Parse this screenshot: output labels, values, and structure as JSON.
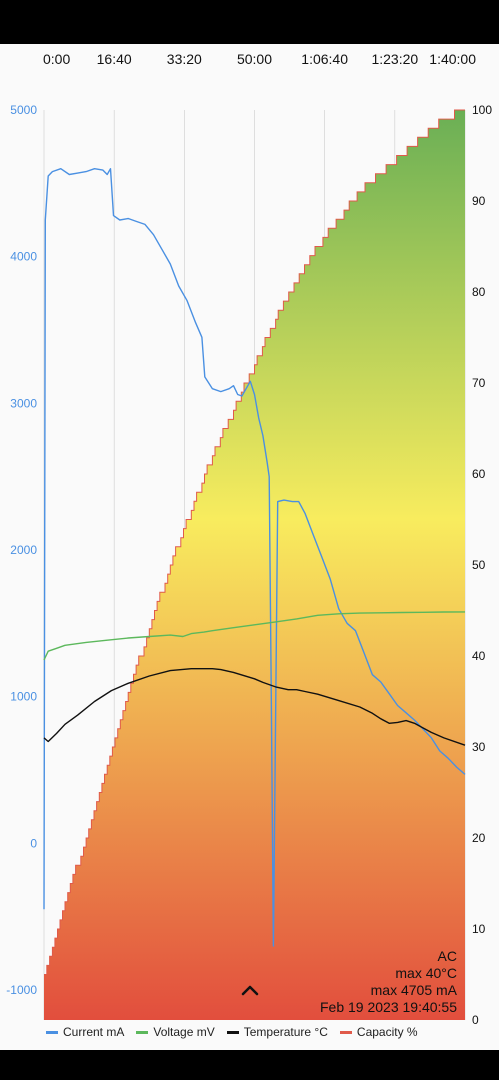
{
  "chart_data": {
    "type": "line",
    "x_ticks": [
      "0:00",
      "16:40",
      "33:20",
      "50:00",
      "1:06:40",
      "1:23:20",
      "1:40:00"
    ],
    "x_range_minutes": [
      0,
      100
    ],
    "y_left_ticks": [
      "5000",
      "4000",
      "3000",
      "2000",
      "1000",
      "0",
      "-1000"
    ],
    "y_left_range": [
      -1000,
      5000
    ],
    "y_right_ticks": [
      "100",
      "90",
      "80",
      "70",
      "60",
      "50",
      "40",
      "30",
      "20",
      "10",
      "0"
    ],
    "y_right_range": [
      0,
      100
    ],
    "grid": "vertical lines",
    "legend_position": "bottom",
    "series": [
      {
        "name": "Current mA",
        "color": "#4a90e2",
        "axis": "left",
        "x": [
          0,
          0.3,
          1,
          2,
          4,
          6,
          8,
          10,
          12,
          14,
          15,
          15.8,
          16.5,
          18,
          20,
          22,
          24,
          26,
          28,
          30,
          32,
          34,
          36,
          37.5,
          38.2,
          40,
          42,
          44,
          45,
          46,
          47,
          48,
          49,
          50,
          51,
          52,
          53,
          53.5,
          54,
          54.5,
          55.5,
          57,
          59,
          60,
          60.5,
          62,
          64,
          66,
          68,
          70,
          72,
          74,
          76,
          78,
          80,
          82,
          84,
          86,
          88,
          90,
          92,
          94,
          96,
          98,
          100
        ],
        "y": [
          -450,
          4250,
          4550,
          4580,
          4600,
          4560,
          4570,
          4580,
          4600,
          4590,
          4560,
          4600,
          4280,
          4250,
          4260,
          4240,
          4220,
          4150,
          4050,
          3950,
          3800,
          3700,
          3550,
          3450,
          3180,
          3100,
          3080,
          3100,
          3120,
          3060,
          3050,
          3100,
          3150,
          3060,
          2900,
          2780,
          2600,
          2500,
          1000,
          -700,
          2330,
          2340,
          2330,
          2330,
          2330,
          2250,
          2100,
          1950,
          1800,
          1600,
          1500,
          1450,
          1300,
          1150,
          1100,
          1020,
          940,
          890,
          840,
          780,
          720,
          630,
          580,
          520,
          470
        ]
      },
      {
        "name": "Voltage mV",
        "color": "#5cb85c",
        "axis": "left",
        "x": [
          0,
          1,
          3,
          5,
          10,
          15,
          20,
          25,
          30,
          33,
          35,
          38,
          40,
          45,
          50,
          55,
          60,
          65,
          70,
          75,
          80,
          85,
          90,
          95,
          100
        ],
        "y": [
          1250,
          1310,
          1330,
          1350,
          1370,
          1385,
          1400,
          1410,
          1420,
          1410,
          1430,
          1440,
          1450,
          1470,
          1490,
          1510,
          1530,
          1555,
          1565,
          1570,
          1572,
          1574,
          1575,
          1577,
          1578
        ]
      },
      {
        "name": "Temperature °C",
        "color": "#111111",
        "axis": "right",
        "x": [
          0,
          1,
          3,
          5,
          8,
          12,
          16,
          20,
          25,
          30,
          35,
          38,
          40,
          42,
          45,
          50,
          52,
          55,
          58,
          60,
          62,
          65,
          70,
          75,
          78,
          80,
          82,
          84,
          86,
          88,
          90,
          92,
          95,
          100
        ],
        "y": [
          31,
          30.6,
          31.5,
          32.5,
          33.5,
          35,
          36.2,
          37,
          37.8,
          38.4,
          38.6,
          38.6,
          38.6,
          38.5,
          38.2,
          37.5,
          37.1,
          36.6,
          36.3,
          36.3,
          36.1,
          35.8,
          35.1,
          34.4,
          33.7,
          33.1,
          32.6,
          32.7,
          32.9,
          32.6,
          32.1,
          31.6,
          31.0,
          30.2
        ]
      },
      {
        "name": "Capacity %",
        "color": "#e05a4a",
        "axis": "right",
        "step": true,
        "x": [
          0,
          2,
          5,
          10,
          15,
          20,
          25,
          30,
          35,
          40,
          45,
          50,
          55,
          60,
          65,
          70,
          75,
          80,
          85,
          90,
          95,
          100
        ],
        "y": [
          5,
          8,
          13,
          20,
          28,
          36,
          43,
          50,
          56,
          62,
          67,
          72,
          77,
          81,
          85,
          88,
          91,
          93,
          95,
          97,
          99,
          100
        ]
      }
    ]
  },
  "status": {
    "source": "AC",
    "max_temp": "max 40°C",
    "max_current": "max 4705 mA",
    "datetime": "Feb 19 2023 19:40:55"
  },
  "colors": {
    "gradient_top": "#6aaf55",
    "gradient_mid": "#f8ec5e",
    "gradient_bottom": "#e24e3d"
  },
  "expand_icon": "chevron-up-icon"
}
